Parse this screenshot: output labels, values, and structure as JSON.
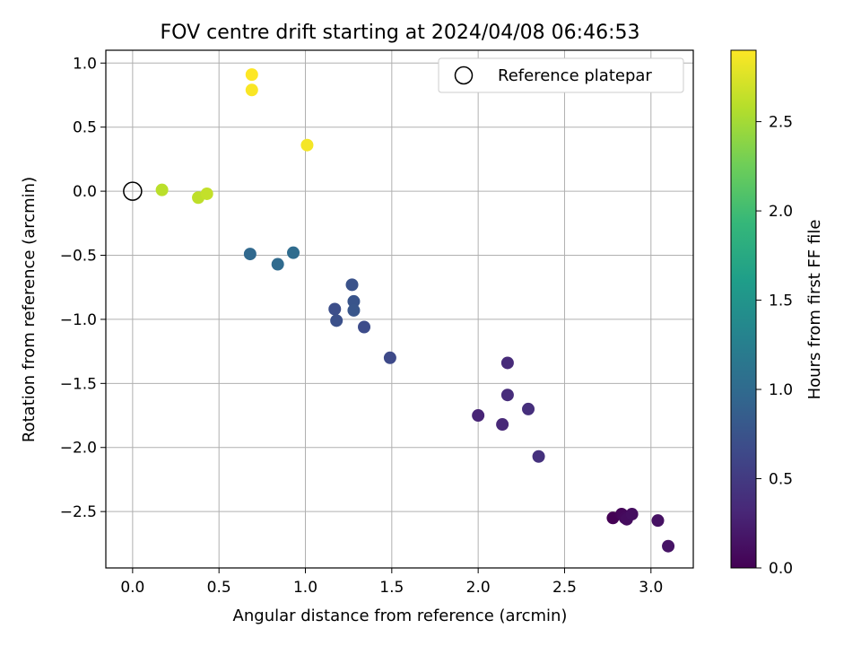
{
  "chart_data": {
    "type": "scatter",
    "title": "FOV centre drift starting at 2024/04/08 06:46:53",
    "xlabel": "Angular distance from reference (arcmin)",
    "ylabel": "Rotation from reference (arcmin)",
    "xlim": [
      -0.155,
      3.245
    ],
    "ylim": [
      -2.94,
      1.1
    ],
    "xticks": [
      0.0,
      0.5,
      1.0,
      1.5,
      2.0,
      2.5,
      3.0
    ],
    "xtick_labels": [
      "0.0",
      "0.5",
      "1.0",
      "1.5",
      "2.0",
      "2.5",
      "3.0"
    ],
    "yticks": [
      1.0,
      0.5,
      0.0,
      -0.5,
      -1.0,
      -1.5,
      -2.0,
      -2.5
    ],
    "ytick_labels": [
      "1.0",
      "0.5",
      "0.0",
      "−0.5",
      "−1.0",
      "−1.5",
      "−2.0",
      "−2.5"
    ],
    "grid": true,
    "legend": {
      "position": "top-right",
      "entries": [
        "Reference platepar"
      ]
    },
    "reference_point": {
      "x": 0.0,
      "y": 0.0
    },
    "colorbar": {
      "label": "Hours from first FF file",
      "range": [
        0.0,
        2.9
      ],
      "ticks": [
        0.0,
        0.5,
        1.0,
        1.5,
        2.0,
        2.5
      ],
      "tick_labels": [
        "0.0",
        "0.5",
        "1.0",
        "1.5",
        "2.0",
        "2.5"
      ],
      "colormap": "viridis",
      "colors": [
        "#440154",
        "#482878",
        "#3e4989",
        "#31688e",
        "#26828e",
        "#1f9e89",
        "#35b779",
        "#6ece58",
        "#b5de2b",
        "#fde725"
      ]
    },
    "points": [
      {
        "x": 2.78,
        "y": -2.55,
        "hours": 0.0
      },
      {
        "x": 2.83,
        "y": -2.52,
        "hours": 0.03
      },
      {
        "x": 2.84,
        "y": -2.53,
        "hours": 0.05
      },
      {
        "x": 2.85,
        "y": -2.55,
        "hours": 0.07
      },
      {
        "x": 2.86,
        "y": -2.56,
        "hours": 0.09
      },
      {
        "x": 2.89,
        "y": -2.52,
        "hours": 0.11
      },
      {
        "x": 3.04,
        "y": -2.57,
        "hours": 0.13
      },
      {
        "x": 3.1,
        "y": -2.77,
        "hours": 0.15
      },
      {
        "x": 2.0,
        "y": -1.75,
        "hours": 0.3
      },
      {
        "x": 2.14,
        "y": -1.82,
        "hours": 0.33
      },
      {
        "x": 2.17,
        "y": -1.34,
        "hours": 0.35
      },
      {
        "x": 2.17,
        "y": -1.59,
        "hours": 0.37
      },
      {
        "x": 2.29,
        "y": -1.7,
        "hours": 0.39
      },
      {
        "x": 2.35,
        "y": -2.07,
        "hours": 0.41
      },
      {
        "x": 1.49,
        "y": -1.3,
        "hours": 0.65
      },
      {
        "x": 1.34,
        "y": -1.06,
        "hours": 0.68
      },
      {
        "x": 1.17,
        "y": -0.92,
        "hours": 0.7
      },
      {
        "x": 1.18,
        "y": -1.01,
        "hours": 0.72
      },
      {
        "x": 1.27,
        "y": -0.73,
        "hours": 0.74
      },
      {
        "x": 1.28,
        "y": -0.86,
        "hours": 0.76
      },
      {
        "x": 1.28,
        "y": -0.93,
        "hours": 0.78
      },
      {
        "x": 0.68,
        "y": -0.49,
        "hours": 0.98
      },
      {
        "x": 0.84,
        "y": -0.57,
        "hours": 1.0
      },
      {
        "x": 0.93,
        "y": -0.48,
        "hours": 1.02
      },
      {
        "x": 0.17,
        "y": 0.01,
        "hours": 2.6
      },
      {
        "x": 0.38,
        "y": -0.05,
        "hours": 2.62
      },
      {
        "x": 0.43,
        "y": -0.02,
        "hours": 2.64
      },
      {
        "x": 0.69,
        "y": 0.91,
        "hours": 2.9
      },
      {
        "x": 0.69,
        "y": 0.79,
        "hours": 2.88
      },
      {
        "x": 1.01,
        "y": 0.36,
        "hours": 2.86
      }
    ]
  }
}
